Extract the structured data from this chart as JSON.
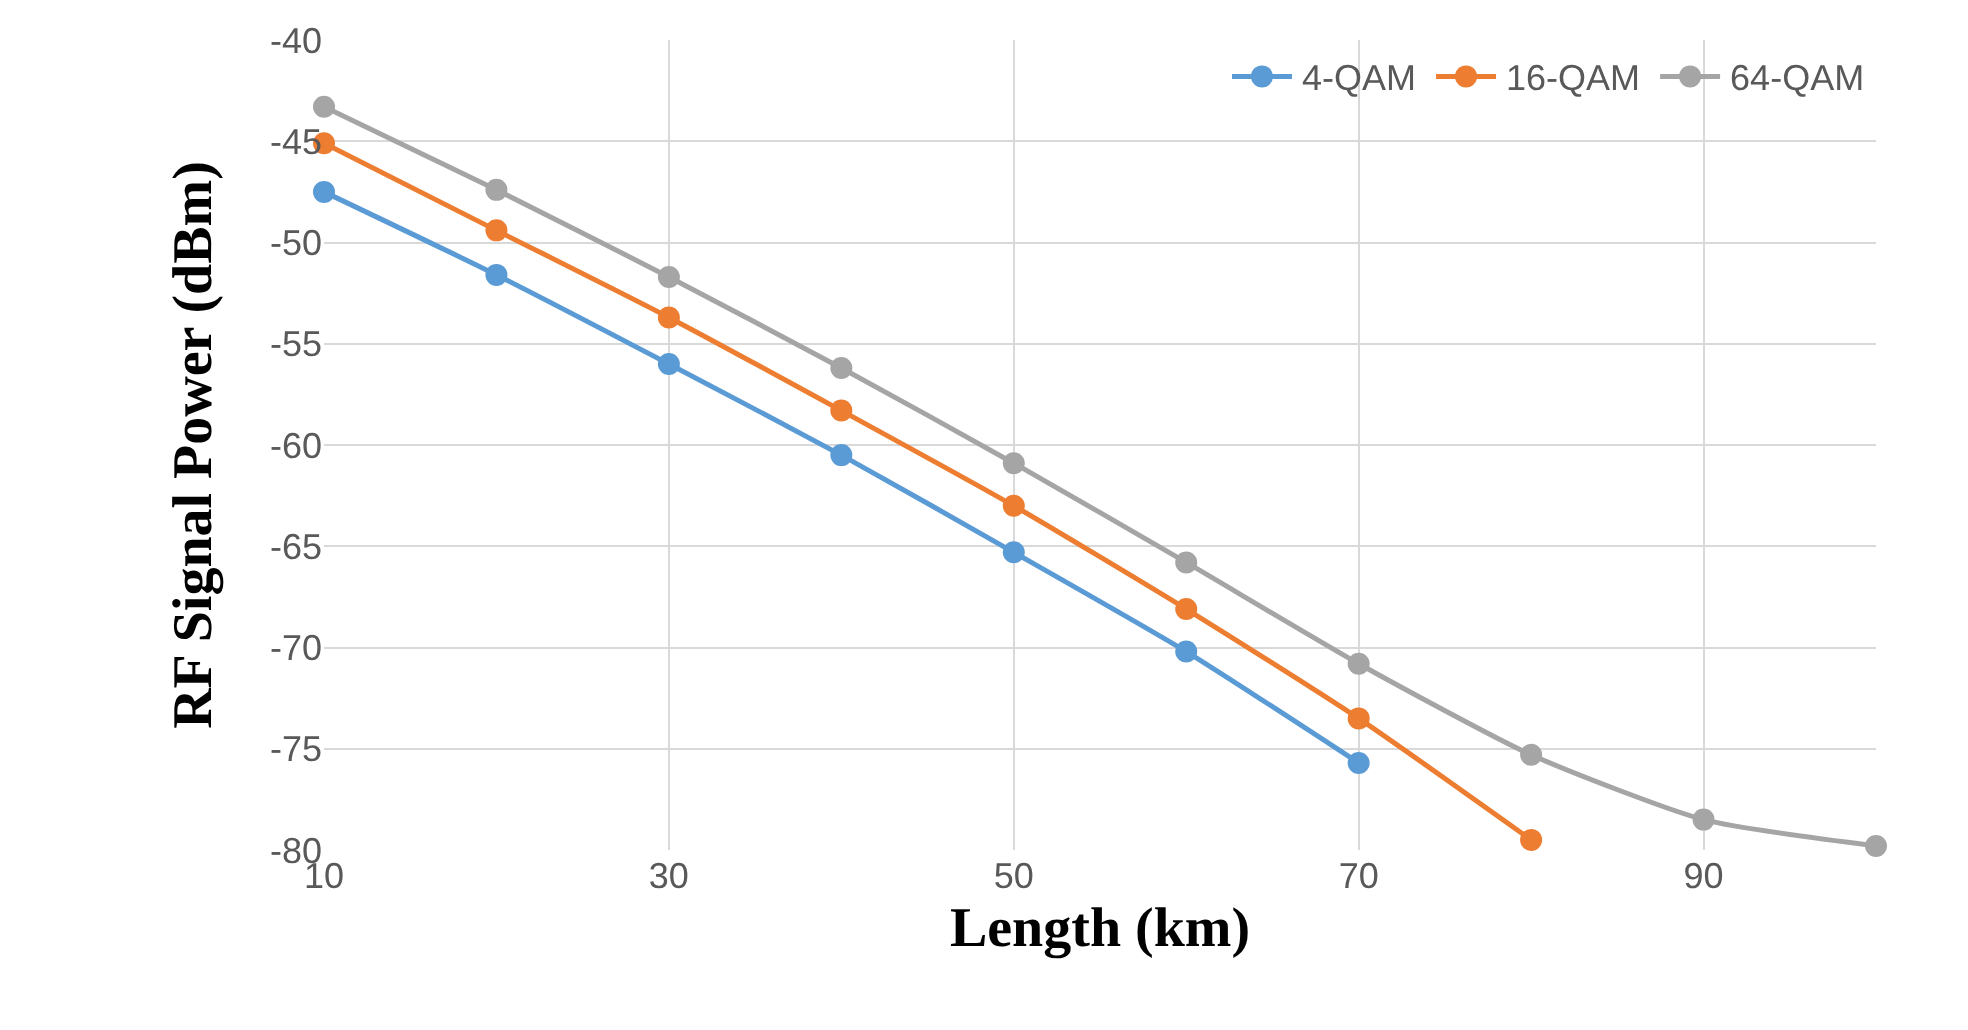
{
  "chart_data": {
    "type": "line",
    "xlabel": "Length (km)",
    "ylabel": "RF Signal Power (dBm)",
    "x": [
      10,
      20,
      30,
      40,
      50,
      60,
      70,
      80,
      90,
      100
    ],
    "series": [
      {
        "name": "4-QAM",
        "color": "#5b9bd5",
        "values": [
          -47.5,
          -51.6,
          -56.0,
          -60.5,
          -65.3,
          -70.2,
          -75.7,
          null,
          null,
          null
        ]
      },
      {
        "name": "16-QAM",
        "color": "#ed7d31",
        "values": [
          -45.1,
          -49.4,
          -53.7,
          -58.3,
          -63.0,
          -68.1,
          -73.5,
          -79.5,
          null,
          null
        ]
      },
      {
        "name": "64-QAM",
        "color": "#a5a5a5",
        "values": [
          -43.3,
          -47.4,
          -51.7,
          -56.2,
          -60.9,
          -65.8,
          -70.8,
          -75.3,
          -78.5,
          -79.8
        ]
      }
    ],
    "xlim": [
      10,
      100
    ],
    "xticks": [
      10,
      30,
      50,
      70,
      90
    ],
    "ylim": [
      -80,
      -40
    ],
    "yticks": [
      -80,
      -75,
      -70,
      -65,
      -60,
      -55,
      -50,
      -45,
      -40
    ],
    "grid": true,
    "legend": "top right",
    "marker": "circle",
    "line_style": "solid"
  }
}
